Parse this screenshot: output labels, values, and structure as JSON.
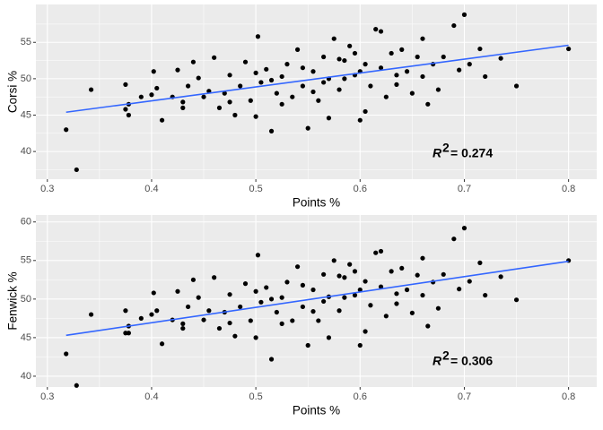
{
  "chart_data": [
    {
      "type": "scatter",
      "x_label": "Points %",
      "y_label": "Corsi %",
      "annotation_label": "R",
      "annotation_power": "2",
      "annotation_value": "= 0.274",
      "xlim": [
        0.289,
        0.827
      ],
      "ylim": [
        36.2,
        60.2
      ],
      "xticks": [
        0.3,
        0.4,
        0.5,
        0.6,
        0.7,
        0.8
      ],
      "yticks": [
        40,
        45,
        50,
        55
      ],
      "grid": true,
      "color": "#000000",
      "trend_color": "#3366ff",
      "trend": {
        "x": [
          0.318,
          0.8
        ],
        "y": [
          45.4,
          54.6
        ]
      },
      "x": [
        0.318,
        0.328,
        0.342,
        0.375,
        0.378,
        0.375,
        0.378,
        0.39,
        0.4,
        0.402,
        0.405,
        0.41,
        0.42,
        0.425,
        0.43,
        0.435,
        0.44,
        0.445,
        0.45,
        0.455,
        0.46,
        0.465,
        0.47,
        0.475,
        0.48,
        0.485,
        0.49,
        0.495,
        0.5,
        0.502,
        0.505,
        0.51,
        0.515,
        0.52,
        0.525,
        0.53,
        0.535,
        0.54,
        0.545,
        0.55,
        0.555,
        0.56,
        0.565,
        0.57,
        0.575,
        0.58,
        0.585,
        0.59,
        0.595,
        0.6,
        0.605,
        0.61,
        0.615,
        0.62,
        0.625,
        0.63,
        0.635,
        0.64,
        0.645,
        0.65,
        0.655,
        0.66,
        0.665,
        0.67,
        0.675,
        0.68,
        0.69,
        0.695,
        0.7,
        0.705,
        0.715,
        0.72,
        0.735,
        0.75,
        0.8,
        0.605,
        0.585,
        0.565,
        0.545,
        0.525,
        0.515,
        0.595,
        0.555,
        0.635,
        0.475,
        0.43,
        0.62,
        0.57,
        0.5,
        0.6,
        0.58,
        0.66
      ],
      "values": [
        43,
        37.5,
        48.5,
        49.2,
        46.5,
        45.8,
        45,
        47.5,
        47.8,
        51,
        48.7,
        44.3,
        47.5,
        51.2,
        46.8,
        49,
        52.3,
        50.1,
        47.5,
        48.3,
        52.9,
        46,
        48,
        50.5,
        45,
        49,
        52.3,
        47,
        44.8,
        55.8,
        49.5,
        51.3,
        42.8,
        48,
        50.3,
        52,
        47.5,
        54,
        49,
        43.2,
        51,
        47,
        53,
        50,
        55.5,
        48.5,
        52.5,
        54.5,
        50.5,
        44.3,
        52,
        49,
        56.8,
        51.5,
        47.5,
        53.5,
        50.5,
        54,
        51,
        48,
        53,
        55.5,
        46.5,
        52,
        48.5,
        53,
        57.3,
        51.2,
        58.8,
        52,
        54.1,
        50.3,
        52.8,
        49,
        54.1,
        45.5,
        50,
        49.5,
        51.5,
        46.5,
        49.8,
        53.5,
        48.2,
        49.2,
        46.8,
        46,
        56.5,
        44.6,
        50.8,
        51,
        52.7,
        50.3
      ]
    },
    {
      "type": "scatter",
      "x_label": "Points %",
      "y_label": "Fenwick %",
      "annotation_label": "R",
      "annotation_power": "2",
      "annotation_value": "= 0.306",
      "xlim": [
        0.289,
        0.827
      ],
      "ylim": [
        38.6,
        60.9
      ],
      "xticks": [
        0.3,
        0.4,
        0.5,
        0.6,
        0.7,
        0.8
      ],
      "yticks": [
        40,
        45,
        50,
        55,
        60
      ],
      "grid": true,
      "color": "#000000",
      "trend_color": "#3366ff",
      "trend": {
        "x": [
          0.318,
          0.8
        ],
        "y": [
          45.3,
          54.9
        ]
      },
      "x": [
        0.318,
        0.328,
        0.342,
        0.375,
        0.378,
        0.375,
        0.378,
        0.39,
        0.4,
        0.402,
        0.405,
        0.41,
        0.42,
        0.425,
        0.43,
        0.435,
        0.44,
        0.445,
        0.45,
        0.455,
        0.46,
        0.465,
        0.47,
        0.475,
        0.48,
        0.485,
        0.49,
        0.495,
        0.5,
        0.502,
        0.505,
        0.51,
        0.515,
        0.52,
        0.525,
        0.53,
        0.535,
        0.54,
        0.545,
        0.55,
        0.555,
        0.56,
        0.565,
        0.57,
        0.575,
        0.58,
        0.585,
        0.59,
        0.595,
        0.6,
        0.605,
        0.61,
        0.615,
        0.62,
        0.625,
        0.63,
        0.635,
        0.64,
        0.645,
        0.65,
        0.655,
        0.66,
        0.665,
        0.67,
        0.675,
        0.68,
        0.69,
        0.695,
        0.7,
        0.705,
        0.715,
        0.72,
        0.735,
        0.75,
        0.8,
        0.605,
        0.585,
        0.565,
        0.545,
        0.525,
        0.515,
        0.595,
        0.555,
        0.635,
        0.475,
        0.43,
        0.62,
        0.57,
        0.5,
        0.6,
        0.58,
        0.66
      ],
      "values": [
        42.9,
        38.8,
        48,
        48.5,
        46.5,
        45.6,
        45.6,
        47.5,
        48,
        50.8,
        48.5,
        44.2,
        47.3,
        51,
        46.8,
        49,
        52.5,
        50.2,
        47.3,
        48.5,
        52.8,
        46.2,
        48.3,
        50.6,
        45.2,
        49,
        52,
        47.2,
        45,
        55.7,
        49.6,
        51.5,
        42.2,
        48.3,
        50.2,
        52.2,
        47.2,
        54.2,
        49,
        44,
        51.2,
        47.2,
        53.2,
        50.3,
        55,
        48.5,
        52.8,
        54.5,
        50.5,
        44,
        52.3,
        49.2,
        56,
        51.6,
        47.8,
        53.6,
        50.7,
        54,
        51.2,
        48.2,
        53.1,
        55.3,
        46.5,
        52.2,
        48.8,
        53.2,
        57.8,
        51.3,
        59.2,
        52.3,
        54.7,
        50.5,
        52.9,
        49.9,
        55,
        45.8,
        50.2,
        49.7,
        51.8,
        46.8,
        50,
        53.6,
        48.4,
        49.4,
        46.9,
        46.2,
        56.2,
        45,
        51,
        51.2,
        53,
        50.5
      ]
    }
  ]
}
